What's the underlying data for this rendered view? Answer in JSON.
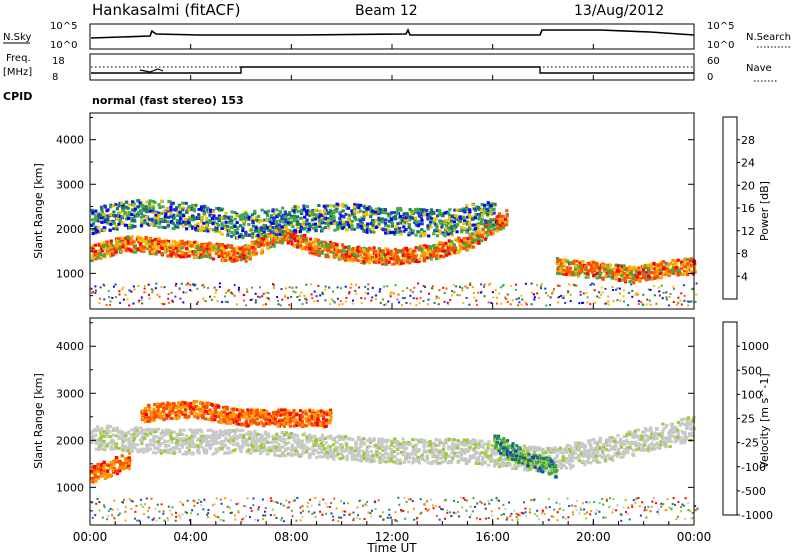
{
  "header": {
    "station": "Hankasalmi (fitACF)",
    "beam": "Beam 12",
    "date": "13/Aug/2012"
  },
  "noise_panel": {
    "left_label": "N.Sky",
    "left_ticks": [
      "10^5",
      "10^0"
    ],
    "right_label": "N.Search",
    "right_ticks": [
      "10^5",
      "10^0"
    ]
  },
  "freq_panel": {
    "left_label_1": "Freq.",
    "left_label_2": "[MHz]",
    "left_ticks": [
      "18",
      "8"
    ],
    "right_label": "Nave",
    "right_ticks": [
      "60",
      "0"
    ]
  },
  "cpid": {
    "label": "CPID",
    "mode": "normal (fast stereo) 153"
  },
  "chart_data": [
    {
      "type": "heatmap",
      "name": "power",
      "ylabel": "Slant Range [km]",
      "ylim": [
        200,
        4600
      ],
      "yticks": [
        "4000",
        "3000",
        "2000",
        "1000"
      ],
      "xlim": [
        0,
        24
      ],
      "colorbar": {
        "label": "Power [dB]",
        "labels": [
          "28",
          "24",
          "20",
          "16",
          "12",
          "8",
          "4"
        ],
        "colors": [
          "#ff0000",
          "#ff5000",
          "#ff9a00",
          "#f0c000",
          "#3fa84a",
          "#1b7a5a",
          "#1e3cc8",
          "#0000ff"
        ]
      },
      "bands": [
        {
          "t": [
            0.0,
            1.5,
            3.0,
            4.5,
            6.0,
            7.5,
            9.0,
            10.5,
            12.0,
            13.5,
            15.0,
            16.5
          ],
          "center": [
            1500,
            1700,
            1600,
            1550,
            1450,
            1900,
            1600,
            1450,
            1400,
            1500,
            1750,
            2300
          ],
          "level": "red"
        },
        {
          "t": [
            0.0,
            2.0,
            4.0,
            6.0,
            8.0,
            10.0,
            12.0,
            14.0,
            16.0
          ],
          "center": [
            2200,
            2400,
            2300,
            2100,
            2250,
            2300,
            2200,
            2150,
            2400
          ],
          "level": "green"
        },
        {
          "t": [
            18.5,
            20.0,
            21.5,
            23.0,
            24.0
          ],
          "center": [
            1200,
            1100,
            1000,
            1150,
            1200
          ],
          "level": "red"
        }
      ]
    },
    {
      "type": "heatmap",
      "name": "velocity",
      "ylabel": "Slant Range [km]",
      "ylim": [
        200,
        4600
      ],
      "yticks": [
        "4000",
        "3000",
        "2000",
        "1000"
      ],
      "xlim": [
        0,
        24
      ],
      "colorbar": {
        "label": "Velocity [m s^-1]",
        "labels": [
          "1000",
          "500",
          "100",
          "25",
          "-25",
          "-100",
          "-500",
          "-1000"
        ],
        "colors": [
          "#1e3cc8",
          "#1b7a5a",
          "#3fa84a",
          "#9acd32",
          "#c8c8c8",
          "#ff9a00",
          "#ff5000",
          "#ff0000"
        ]
      },
      "bands": [
        {
          "t": [
            0.0,
            3.0,
            6.0,
            9.0,
            12.0,
            15.0,
            18.0,
            21.0,
            24.0
          ],
          "center": [
            2100,
            2000,
            2000,
            1900,
            1800,
            1800,
            1600,
            1900,
            2300
          ],
          "level": "grey"
        },
        {
          "t": [
            0.0,
            1.5
          ],
          "center": [
            1300,
            1600
          ],
          "level": "orange"
        },
        {
          "t": [
            2.0,
            4.0,
            6.0,
            8.0,
            9.5
          ],
          "center": [
            2600,
            2700,
            2500,
            2500,
            2500
          ],
          "level": "orange"
        },
        {
          "t": [
            16.0,
            17.0,
            18.5
          ],
          "center": [
            2000,
            1700,
            1400
          ],
          "level": "green"
        }
      ]
    }
  ],
  "time_axis": {
    "label": "Time UT",
    "ticks": [
      "00:00",
      "04:00",
      "08:00",
      "12:00",
      "16:00",
      "20:00",
      "00:00"
    ]
  }
}
